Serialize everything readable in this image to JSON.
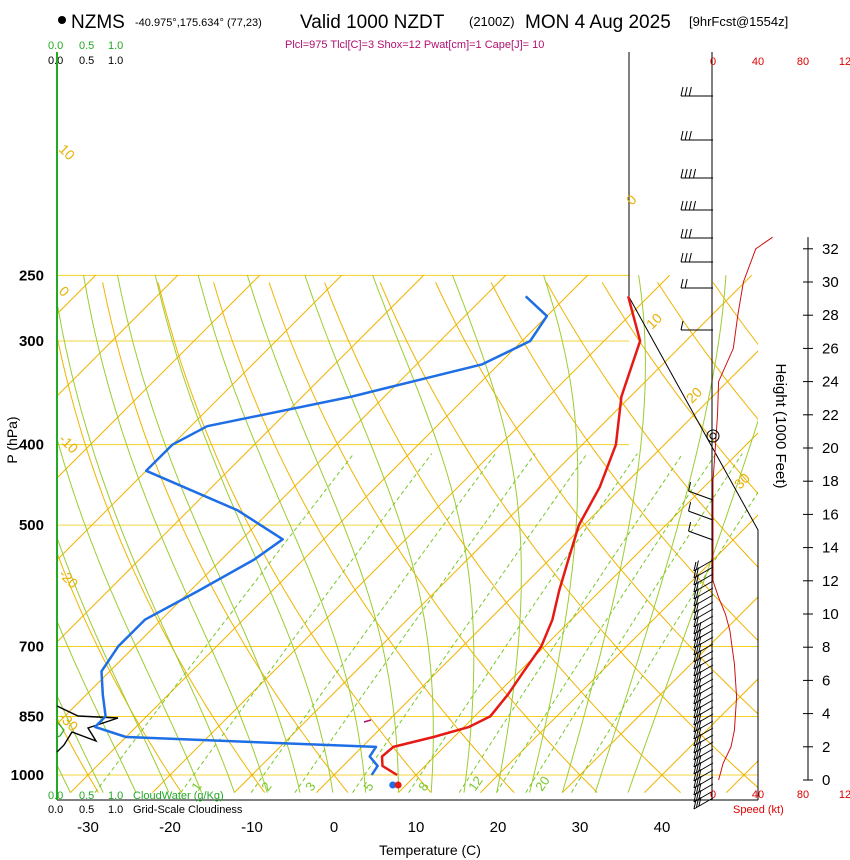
{
  "header": {
    "station": "NZMS",
    "location": "-40.975°,175.634° (77,23)",
    "valid": "Valid 1000 NZDT",
    "utc": "(2100Z)",
    "date": "MON 4 Aug 2025",
    "forecast": "[9hrFcst@1554z]",
    "params": "Plcl=975 Tlcl[C]=3 Shox=12 Pwat[cm]=1 Cape[J]= 10"
  },
  "colors": {
    "temperature": "#e61a14",
    "dewpoint": "#1e6ee6",
    "isotherm": "#f0b400",
    "dry_adiabat": "#f0b400",
    "moist_adiabat": "#9ccc32",
    "mixing_ratio": "#78c828",
    "cloud_water": "#22aa22",
    "wind_speed": "#cc1111",
    "label_purple": "#b01070"
  },
  "chart_data": {
    "type": "skew-t",
    "title": "Valid 1000 NZDT (2100Z) MON 4 Aug 2025",
    "xlabel": "Temperature (C)",
    "ylabel": "P (hPa)",
    "y2label": "Height (1000 Feet)",
    "x_ticks": [
      -30,
      -20,
      -10,
      0,
      10,
      20,
      30,
      40
    ],
    "pressure_ticks": [
      250,
      300,
      400,
      500,
      700,
      850,
      1000
    ],
    "height_ticks": [
      0,
      2,
      4,
      6,
      8,
      10,
      12,
      14,
      16,
      18,
      20,
      22,
      24,
      26,
      28,
      30,
      32
    ],
    "dry_adiabat_labels": [
      "10",
      "0",
      "-10",
      "-20",
      "-30",
      "0",
      "10",
      "20",
      "30"
    ],
    "mixing_ratio_labels": [
      "1",
      "2",
      "3",
      "5",
      "8",
      "12",
      "20"
    ],
    "temperature_profile": [
      {
        "p": 1000,
        "t": 7.7
      },
      {
        "p": 975,
        "t": 4.8
      },
      {
        "p": 950,
        "t": 3.6
      },
      {
        "p": 925,
        "t": 3.8
      },
      {
        "p": 900,
        "t": 7.5
      },
      {
        "p": 875,
        "t": 10.6
      },
      {
        "p": 850,
        "t": 11.9
      },
      {
        "p": 800,
        "t": 11.4
      },
      {
        "p": 750,
        "t": 10.5
      },
      {
        "p": 700,
        "t": 9.6
      },
      {
        "p": 650,
        "t": 7.7
      },
      {
        "p": 600,
        "t": 5.0
      },
      {
        "p": 550,
        "t": 2.3
      },
      {
        "p": 500,
        "t": -0.6
      },
      {
        "p": 450,
        "t": -2.7
      },
      {
        "p": 400,
        "t": -5.9
      },
      {
        "p": 350,
        "t": -11.1
      },
      {
        "p": 300,
        "t": -15.6
      },
      {
        "p": 265,
        "t": -22.5
      }
    ],
    "dewpoint_profile": [
      {
        "p": 1000,
        "t": 4.6
      },
      {
        "p": 975,
        "t": 4.2
      },
      {
        "p": 950,
        "t": 2.1
      },
      {
        "p": 925,
        "t": 1.7
      },
      {
        "p": 900,
        "t": -30.0
      },
      {
        "p": 875,
        "t": -35.0
      },
      {
        "p": 850,
        "t": -35.0
      },
      {
        "p": 800,
        "t": -38.0
      },
      {
        "p": 750,
        "t": -41.0
      },
      {
        "p": 700,
        "t": -42.0
      },
      {
        "p": 650,
        "t": -42.0
      },
      {
        "p": 600,
        "t": -39.0
      },
      {
        "p": 550,
        "t": -36.0
      },
      {
        "p": 520,
        "t": -35.0
      },
      {
        "p": 480,
        "t": -44.0
      },
      {
        "p": 430,
        "t": -60.0
      },
      {
        "p": 400,
        "t": -60.0
      },
      {
        "p": 380,
        "t": -58.0
      },
      {
        "p": 350,
        "t": -44.0
      },
      {
        "p": 320,
        "t": -32.0
      },
      {
        "p": 300,
        "t": -29.0
      },
      {
        "p": 280,
        "t": -30.0
      },
      {
        "p": 265,
        "t": -35.0
      }
    ],
    "surface_points": [
      {
        "name": "dewpoint",
        "t": 5.7
      },
      {
        "name": "temperature",
        "t": 7.7
      }
    ],
    "wind_speed_profile": [
      {
        "h": 0,
        "kt": 5
      },
      {
        "h": 1,
        "kt": 9
      },
      {
        "h": 2,
        "kt": 16
      },
      {
        "h": 3,
        "kt": 19
      },
      {
        "h": 4,
        "kt": 20
      },
      {
        "h": 5,
        "kt": 21
      },
      {
        "h": 6,
        "kt": 20
      },
      {
        "h": 7,
        "kt": 19
      },
      {
        "h": 8,
        "kt": 17
      },
      {
        "h": 9,
        "kt": 15
      },
      {
        "h": 10,
        "kt": 11
      },
      {
        "h": 11,
        "kt": 5
      },
      {
        "h": 12,
        "kt": 0
      },
      {
        "h": 14,
        "kt": 0
      },
      {
        "h": 16,
        "kt": 0
      },
      {
        "h": 18,
        "kt": 0
      },
      {
        "h": 20,
        "kt": 2
      },
      {
        "h": 22,
        "kt": 4
      },
      {
        "h": 24,
        "kt": 5
      },
      {
        "h": 26,
        "kt": 18
      },
      {
        "h": 28,
        "kt": 22
      },
      {
        "h": 30,
        "kt": 27
      },
      {
        "h": 32,
        "kt": 38
      },
      {
        "h": 32.7,
        "kt": 53
      }
    ],
    "speed_axis_ticks": [
      "0",
      "40",
      "80",
      "12"
    ],
    "speed_axis_label": "Speed (kt)",
    "cloud_water_axis_ticks": [
      "0.0",
      "0.5",
      "1.0"
    ],
    "cloudiness_axis_ticks": [
      "0.0",
      "0.5",
      "1.0"
    ],
    "cloud_water_label": "CloudWater (g/Kg)",
    "cloudiness_label": "Grid-Scale Cloudiness"
  }
}
